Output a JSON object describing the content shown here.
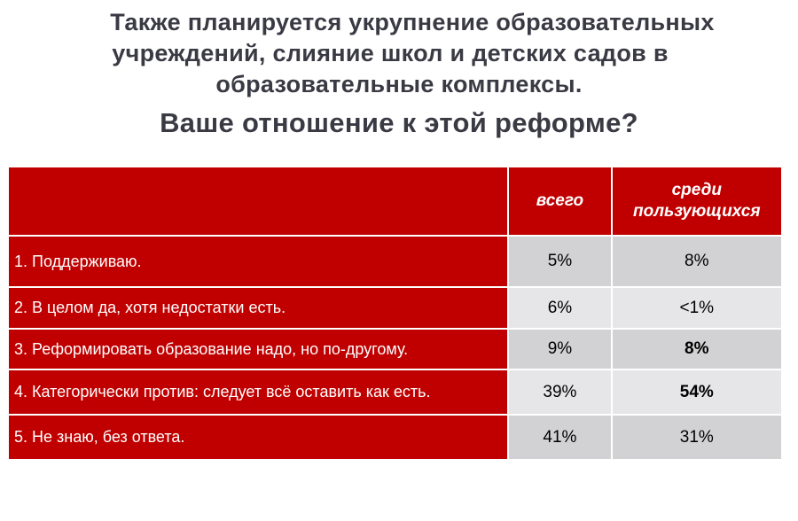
{
  "title": {
    "line1": "Также планируется укрупнение образовательных",
    "line2": "учреждений, слияние школ и детских садов в",
    "line3": "образовательные комплексы.",
    "question": "Ваше отношение к этой реформе?"
  },
  "table": {
    "header": {
      "label": "",
      "all": "всего",
      "users": "среди пользующихся"
    },
    "rows": [
      {
        "label": "1. Поддерживаю.",
        "all": "5%",
        "users": "8%",
        "users_bold": false
      },
      {
        "label": "2. В целом да, хотя недостатки есть.",
        "all": "6%",
        "users": "<1%",
        "users_bold": false
      },
      {
        "label": "3. Реформировать образование надо, но по-другому.",
        "all": "9%",
        "users": "8%",
        "users_bold": true
      },
      {
        "label": "4. Категорически против: следует всё оставить как есть.",
        "all": "39%",
        "users": "54%",
        "users_bold": true
      },
      {
        "label": "5. Не знаю, без ответа.",
        "all": "41%",
        "users": "31%",
        "users_bold": false
      }
    ]
  },
  "colors": {
    "accent_red": "#c00000",
    "cell_dark": "#d2d2d4",
    "cell_light": "#e6e6e8",
    "title_text": "#3a3a44"
  }
}
